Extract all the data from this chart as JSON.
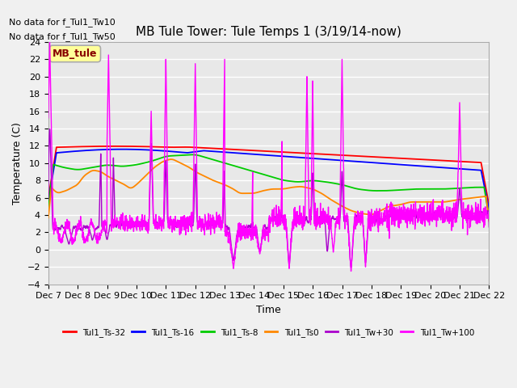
{
  "title": "MB Tule Tower: Tule Temps 1 (3/19/14-now)",
  "xlabel": "Time",
  "ylabel": "Temperature (C)",
  "ylim": [
    -4,
    24
  ],
  "yticks": [
    -4,
    -2,
    0,
    2,
    4,
    6,
    8,
    10,
    12,
    14,
    16,
    18,
    20,
    22,
    24
  ],
  "x_start": 7,
  "x_end": 22,
  "xtick_labels": [
    "Dec 7",
    "Dec 8",
    "Dec 9",
    "Dec 10",
    "Dec 11",
    "Dec 12",
    "Dec 13",
    "Dec 14",
    "Dec 15",
    "Dec 16",
    "Dec 17",
    "Dec 18",
    "Dec 19",
    "Dec 20",
    "Dec 21",
    "Dec 22"
  ],
  "xtick_positions": [
    7,
    8,
    9,
    10,
    11,
    12,
    13,
    14,
    15,
    16,
    17,
    18,
    19,
    20,
    21,
    22
  ],
  "no_data_text1": "No data for f_Tul1_Tw10",
  "no_data_text2": "No data for f_Tul1_Tw50",
  "legend_label_text": "MB_tule",
  "series_colors": {
    "Tul1_Ts-32": "#ff0000",
    "Tul1_Ts-16": "#0000ff",
    "Tul1_Ts-8": "#00cc00",
    "Tul1_Ts0": "#ff8800",
    "Tul1_Tw+30": "#aa00cc",
    "Tul1_Tw+100": "#ff00ff"
  },
  "bg_color": "#e8e8e8",
  "grid_color": "#ffffff",
  "title_fontsize": 11,
  "axis_fontsize": 9,
  "tick_fontsize": 8
}
